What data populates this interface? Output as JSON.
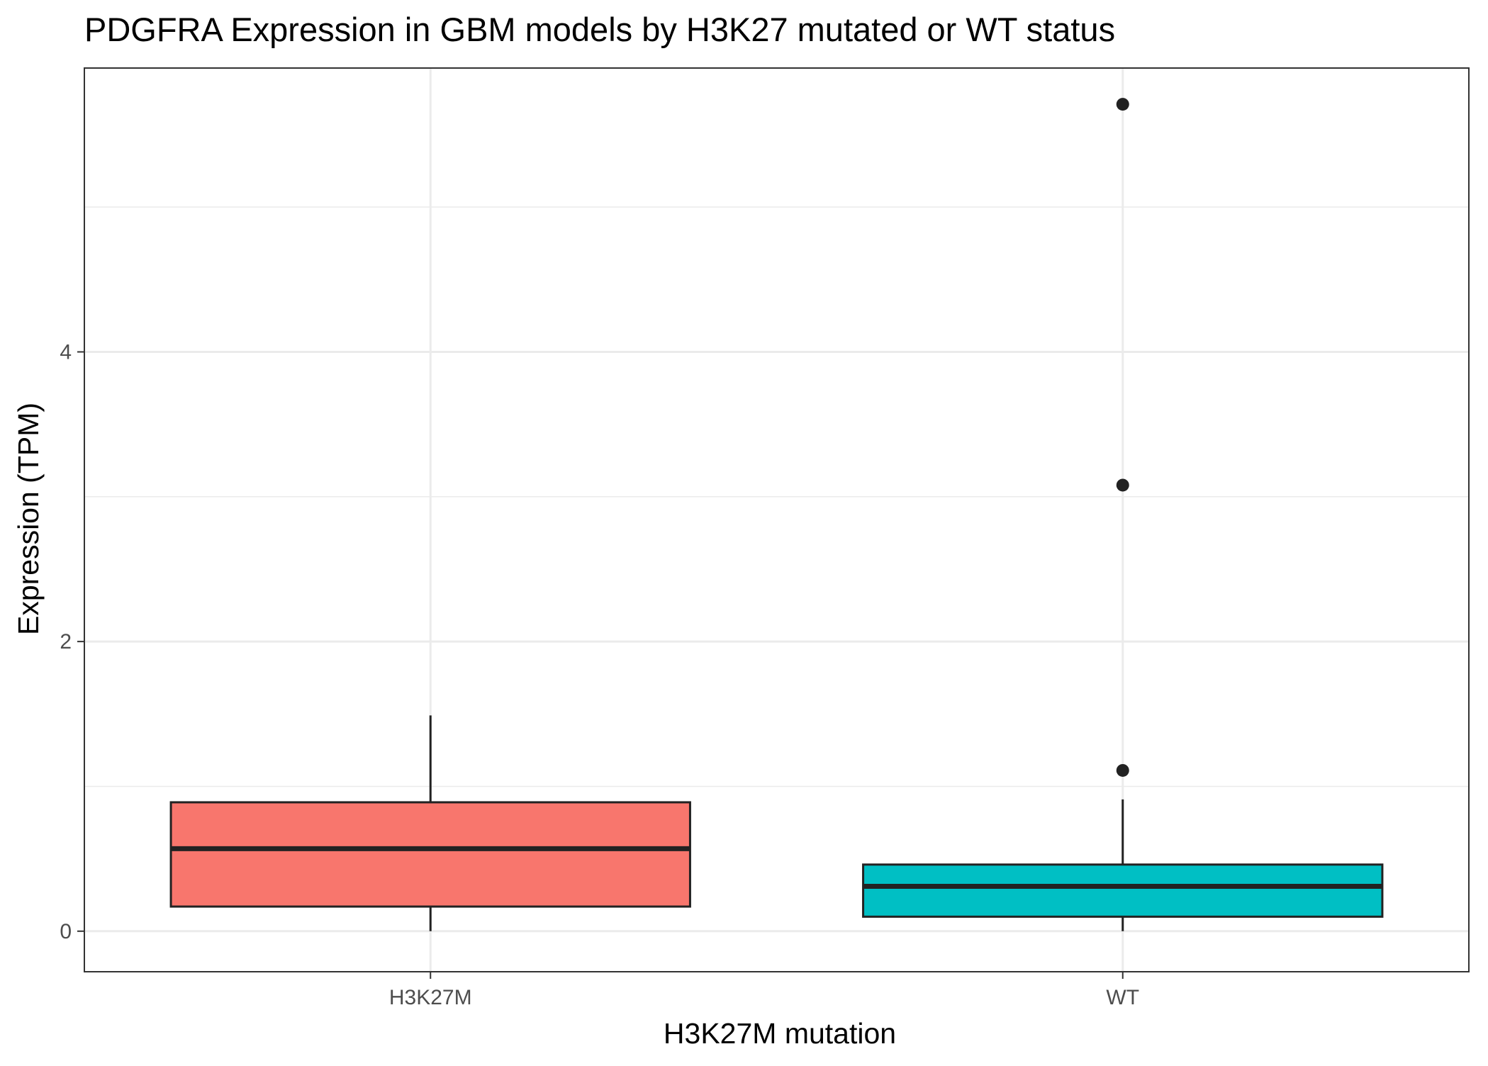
{
  "chart_data": {
    "type": "box",
    "title": "PDGFRA Expression in GBM models by H3K27 mutated or WT status",
    "xlabel": "H3K27M mutation",
    "ylabel": "Expression (TPM)",
    "categories": [
      "H3K27M",
      "WT"
    ],
    "ylim": [
      -0.28,
      5.96
    ],
    "y_ticks": [
      0,
      2,
      4
    ],
    "y_minor_ticks": [
      1,
      3,
      5
    ],
    "grid": true,
    "boxes": [
      {
        "category": "H3K27M",
        "color": "#F8766D",
        "whisker_low": 0.0,
        "q1": 0.17,
        "median": 0.57,
        "q3": 0.89,
        "whisker_high": 1.49,
        "outliers": []
      },
      {
        "category": "WT",
        "color": "#00BFC4",
        "whisker_low": 0.0,
        "q1": 0.1,
        "median": 0.31,
        "q3": 0.46,
        "whisker_high": 0.91,
        "outliers": [
          1.11,
          3.08,
          5.71
        ]
      }
    ]
  }
}
